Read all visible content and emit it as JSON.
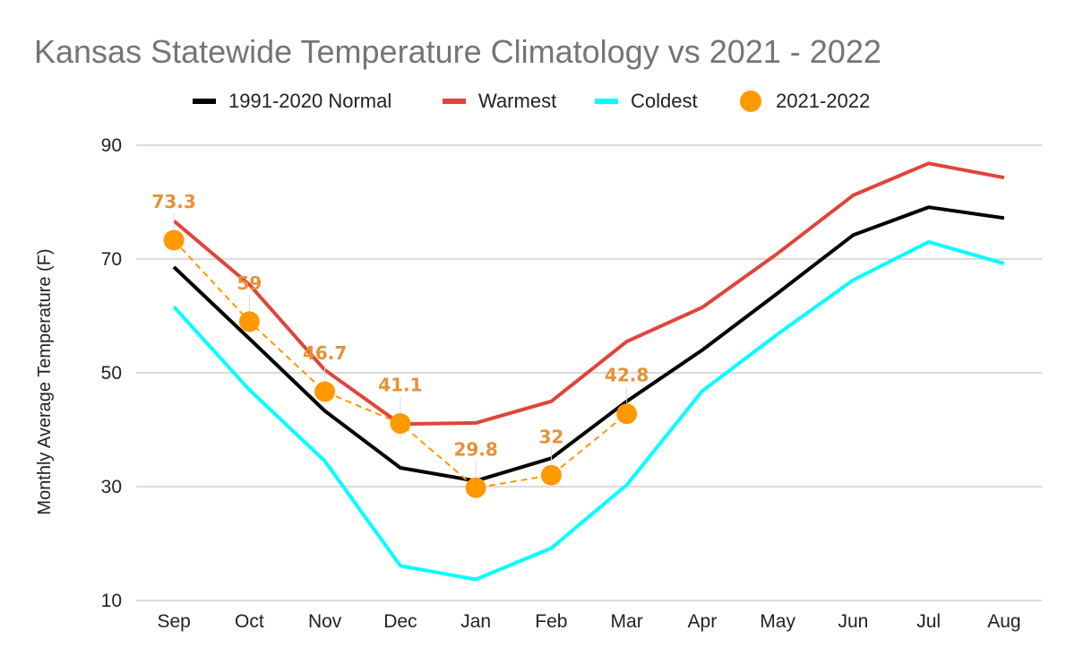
{
  "chart_data": {
    "type": "line",
    "title": "Kansas Statewide Temperature Climatology vs 2021 - 2022",
    "ylabel": "Monthly Average Temperature (F)",
    "xlabel": "",
    "ylim": [
      10,
      90
    ],
    "yticks": [
      10,
      30,
      50,
      70,
      90
    ],
    "ytick_labels": [
      "10",
      "30",
      "50",
      "70",
      "90"
    ],
    "grid": true,
    "legend_position": "top",
    "categories": [
      "Sep",
      "Oct",
      "Nov",
      "Dec",
      "Jan",
      "Feb",
      "Mar",
      "Apr",
      "May",
      "Jun",
      "Jul",
      "Aug"
    ],
    "series": [
      {
        "name": "1991-2020 Normal",
        "key": "normal",
        "color": "#000000",
        "style": "line",
        "values": [
          68.6,
          56.0,
          43.3,
          33.3,
          31.0,
          35.0,
          45.0,
          54.0,
          64.0,
          74.2,
          79.1,
          77.2
        ]
      },
      {
        "name": "Warmest",
        "key": "warmest",
        "color": "#e0443a",
        "style": "line",
        "values": [
          76.7,
          65.5,
          50.5,
          41.0,
          41.2,
          45.0,
          55.5,
          61.5,
          71.0,
          81.2,
          86.8,
          84.3
        ]
      },
      {
        "name": "Coldest",
        "key": "coldest",
        "color": "#00ffff",
        "style": "line",
        "values": [
          61.6,
          47.0,
          34.5,
          16.1,
          13.7,
          19.2,
          30.3,
          46.8,
          56.8,
          66.3,
          73.0,
          69.2
        ]
      },
      {
        "name": "2021-2022",
        "key": "current",
        "color": "#ff9900",
        "style": "dashed-markers",
        "values": [
          73.3,
          59,
          46.7,
          41.1,
          29.8,
          32,
          42.8,
          null,
          null,
          null,
          null,
          null
        ],
        "data_labels": [
          "73.3",
          "59",
          "46.7",
          "41.1",
          "29.8",
          "32",
          "42.8"
        ]
      }
    ]
  }
}
